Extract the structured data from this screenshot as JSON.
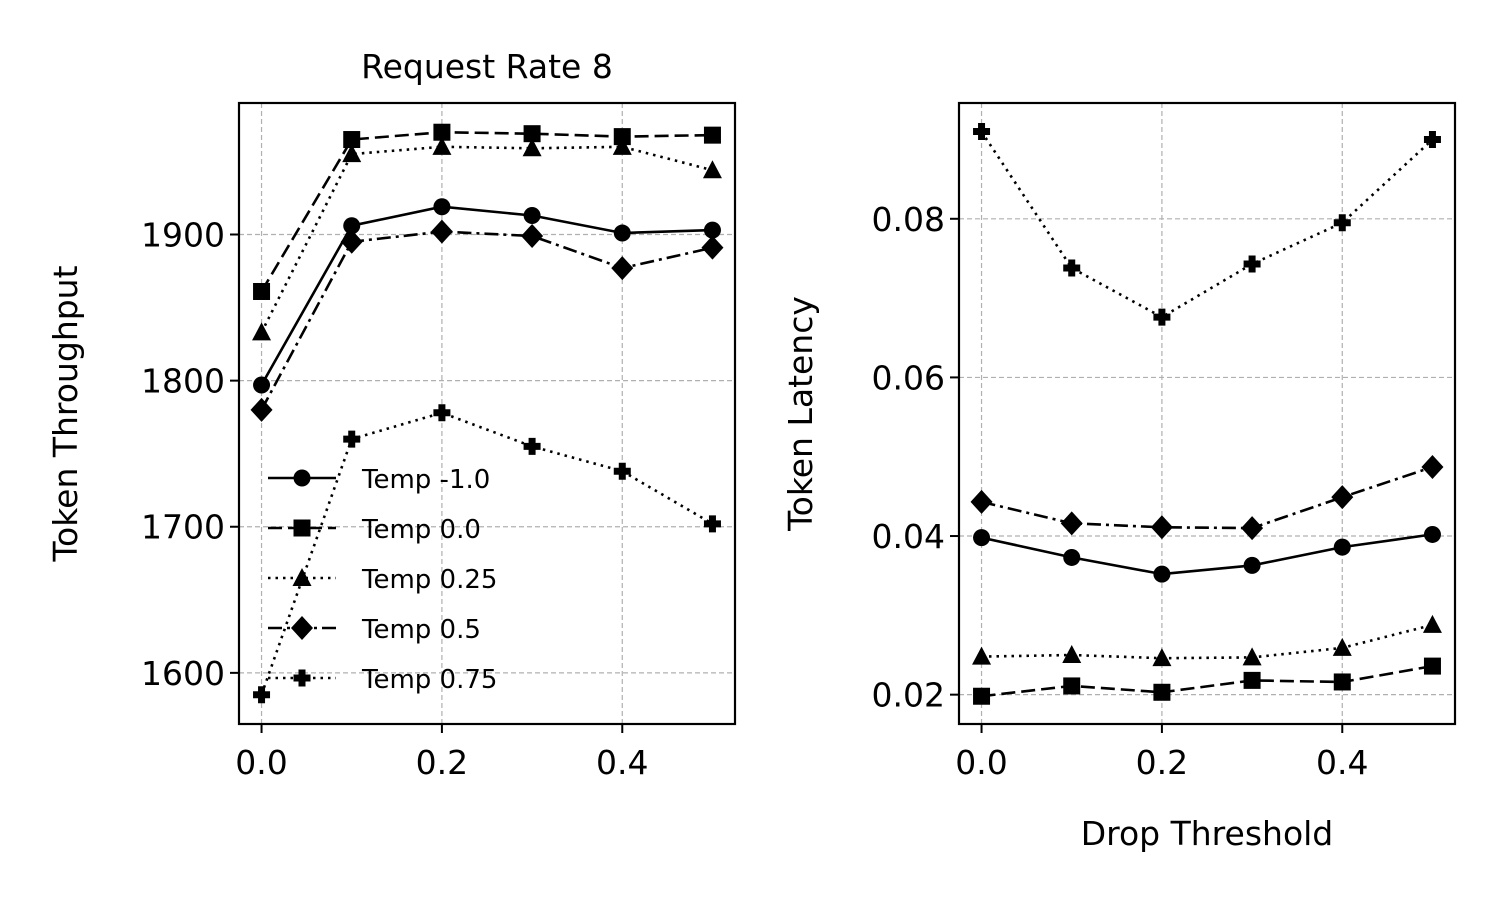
{
  "chart_data": [
    {
      "type": "line",
      "title": "Request Rate 8",
      "xlabel": "",
      "ylabel": "Token Throughput",
      "x": [
        0.0,
        0.1,
        0.2,
        0.3,
        0.4,
        0.5
      ],
      "xlim": [
        -0.025,
        0.525
      ],
      "ylim": [
        1565,
        1990
      ],
      "xticks": [
        0.0,
        0.2,
        0.4
      ],
      "xtick_labels": [
        "0.0",
        "0.2",
        "0.4"
      ],
      "yticks": [
        1600,
        1700,
        1800,
        1900
      ],
      "ytick_labels": [
        "1600",
        "1700",
        "1800",
        "1900"
      ],
      "grid": true,
      "legend": "lower-left",
      "series": [
        {
          "name": "Temp -1.0",
          "marker": "circle",
          "linestyle": "solid",
          "values": [
            1797,
            1906,
            1919,
            1913,
            1901,
            1903
          ]
        },
        {
          "name": "Temp 0.0",
          "marker": "square",
          "linestyle": "dashed",
          "values": [
            1861,
            1965,
            1970,
            1969,
            1967,
            1968
          ]
        },
        {
          "name": "Temp 0.25",
          "marker": "triangle",
          "linestyle": "dotted",
          "values": [
            1833,
            1955,
            1960,
            1959,
            1960,
            1944
          ]
        },
        {
          "name": "Temp 0.5",
          "marker": "diamond",
          "linestyle": "dashdot",
          "values": [
            1780,
            1895,
            1902,
            1899,
            1877,
            1891
          ]
        },
        {
          "name": "Temp 0.75",
          "marker": "plus",
          "linestyle": "dotted",
          "values": [
            1585,
            1760,
            1778,
            1755,
            1738,
            1702
          ]
        }
      ]
    },
    {
      "type": "line",
      "title": "",
      "xlabel": "Drop Threshold",
      "ylabel": "Token Latency",
      "x": [
        0.0,
        0.1,
        0.2,
        0.3,
        0.4,
        0.5
      ],
      "xlim": [
        -0.025,
        0.525
      ],
      "ylim": [
        0.0163,
        0.0946
      ],
      "xticks": [
        0.0,
        0.2,
        0.4
      ],
      "xtick_labels": [
        "0.0",
        "0.2",
        "0.4"
      ],
      "yticks": [
        0.02,
        0.04,
        0.06,
        0.08
      ],
      "ytick_labels": [
        "0.02",
        "0.04",
        "0.06",
        "0.08"
      ],
      "grid": true,
      "series": [
        {
          "name": "Temp -1.0",
          "marker": "circle",
          "linestyle": "solid",
          "values": [
            0.0398,
            0.0373,
            0.0352,
            0.0363,
            0.0386,
            0.0402
          ]
        },
        {
          "name": "Temp 0.0",
          "marker": "square",
          "linestyle": "dashed",
          "values": [
            0.0198,
            0.0211,
            0.0203,
            0.0218,
            0.0216,
            0.0236
          ]
        },
        {
          "name": "Temp 0.25",
          "marker": "triangle",
          "linestyle": "dotted",
          "values": [
            0.0248,
            0.025,
            0.0246,
            0.0247,
            0.0259,
            0.0288
          ]
        },
        {
          "name": "Temp 0.5",
          "marker": "diamond",
          "linestyle": "dashdot",
          "values": [
            0.0443,
            0.0416,
            0.0411,
            0.041,
            0.0449,
            0.0487
          ]
        },
        {
          "name": "Temp 0.75",
          "marker": "plus",
          "linestyle": "dotted",
          "values": [
            0.091,
            0.0738,
            0.0676,
            0.0743,
            0.0795,
            0.09
          ]
        }
      ]
    }
  ]
}
